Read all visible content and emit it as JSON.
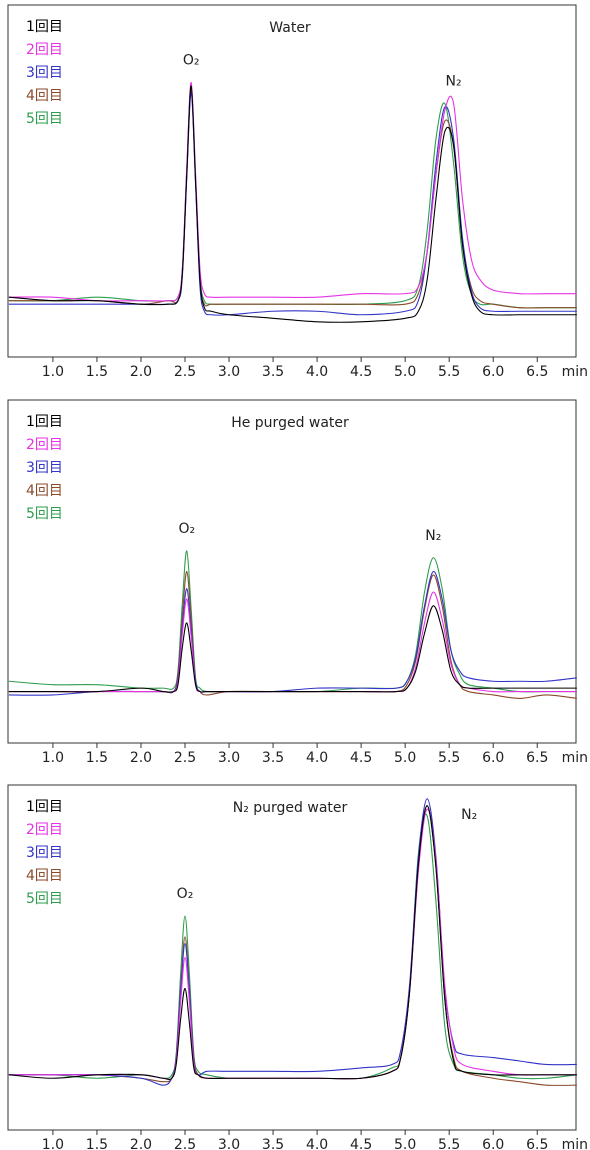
{
  "chart_data": [
    {
      "type": "line",
      "title": "Water",
      "xlabel": "min",
      "peak_labels": [
        "O₂",
        "N₂"
      ],
      "xlim": [
        0.49,
        6.94
      ],
      "ylim": [
        0,
        100
      ],
      "xticks": [
        {
          "value": 1,
          "label": "1.0"
        },
        {
          "value": 1.5,
          "label": "1.5"
        },
        {
          "value": 2,
          "label": "2.0"
        },
        {
          "value": 2.5,
          "label": "2.5"
        },
        {
          "value": 3,
          "label": "3.0"
        },
        {
          "value": 3.5,
          "label": "3.5"
        },
        {
          "value": 4,
          "label": "4.0"
        },
        {
          "value": 4.5,
          "label": "4.5"
        },
        {
          "value": 5,
          "label": "5.0"
        },
        {
          "value": 5.5,
          "label": "5.5"
        },
        {
          "value": 6,
          "label": "6.0"
        },
        {
          "value": 6.5,
          "label": "6.5"
        }
      ],
      "x": [
        0.5,
        1.0,
        1.5,
        2.0,
        2.3,
        2.42,
        2.47,
        2.52,
        2.57,
        2.62,
        2.67,
        2.72,
        2.8,
        3.0,
        3.5,
        4.0,
        4.5,
        5.0,
        5.15,
        5.25,
        5.35,
        5.45,
        5.55,
        5.65,
        5.75,
        5.85,
        6.0,
        6.3,
        6.6,
        6.95
      ],
      "series": [
        {
          "name": "1回目",
          "color": "#000000",
          "values": [
            17,
            16,
            16,
            15,
            15,
            16,
            24,
            52,
            77,
            50,
            22,
            14,
            13,
            12,
            11,
            10,
            10,
            11,
            13,
            22,
            45,
            64,
            60,
            32,
            18,
            13,
            12,
            12,
            12,
            12
          ]
        },
        {
          "name": "2回目",
          "color": "#e632e6",
          "values": [
            17,
            17,
            16,
            16,
            16,
            17,
            25,
            54,
            78,
            52,
            25,
            18,
            17,
            17,
            17,
            17,
            18,
            18,
            20,
            30,
            52,
            70,
            72,
            45,
            28,
            22,
            19,
            18,
            18,
            18
          ]
        },
        {
          "name": "3回目",
          "color": "#3333c8",
          "values": [
            15,
            15,
            15,
            15,
            15,
            16,
            23,
            51,
            75,
            49,
            20,
            13,
            12,
            12,
            13,
            13,
            12,
            13,
            16,
            30,
            55,
            71,
            62,
            34,
            19,
            14,
            13,
            13,
            13,
            13
          ]
        },
        {
          "name": "4回目",
          "color": "#8b4a2b",
          "values": [
            16,
            16,
            16,
            15,
            16,
            16,
            24,
            52,
            76,
            50,
            22,
            15,
            15,
            15,
            15,
            15,
            15,
            15,
            18,
            30,
            52,
            67,
            60,
            33,
            20,
            16,
            15,
            14,
            14,
            14
          ]
        },
        {
          "name": "5回目",
          "color": "#2e9e4e",
          "values": [
            16,
            16,
            17,
            16,
            16,
            17,
            25,
            53,
            77,
            51,
            23,
            16,
            15,
            15,
            15,
            15,
            15,
            16,
            20,
            36,
            62,
            72,
            55,
            29,
            18,
            15,
            15,
            14,
            14,
            14
          ]
        }
      ]
    },
    {
      "type": "line",
      "title": "He purged water",
      "xlabel": "min",
      "peak_labels": [
        "O₂",
        "N₂"
      ],
      "xlim": [
        0.49,
        6.94
      ],
      "ylim": [
        0,
        100
      ],
      "xticks": [
        {
          "value": 1,
          "label": "1.0"
        },
        {
          "value": 1.5,
          "label": "1.5"
        },
        {
          "value": 2,
          "label": "2.0"
        },
        {
          "value": 2.5,
          "label": "2.5"
        },
        {
          "value": 3,
          "label": "3.0"
        },
        {
          "value": 3.5,
          "label": "3.5"
        },
        {
          "value": 4,
          "label": "4.0"
        },
        {
          "value": 4.5,
          "label": "4.5"
        },
        {
          "value": 5,
          "label": "5.0"
        },
        {
          "value": 5.5,
          "label": "5.5"
        },
        {
          "value": 6,
          "label": "6.0"
        },
        {
          "value": 6.5,
          "label": "6.5"
        }
      ],
      "x": [
        0.5,
        1.0,
        1.5,
        2.0,
        2.25,
        2.37,
        2.42,
        2.47,
        2.52,
        2.57,
        2.62,
        2.67,
        2.75,
        3.0,
        3.5,
        4.0,
        4.5,
        4.9,
        5.02,
        5.12,
        5.22,
        5.32,
        5.42,
        5.52,
        5.62,
        5.72,
        6.0,
        6.3,
        6.6,
        6.95
      ],
      "series": [
        {
          "name": "1回目",
          "color": "#000000",
          "values": [
            15,
            15,
            15,
            16,
            15,
            15,
            17,
            28,
            35,
            27,
            17,
            15,
            15,
            15,
            15,
            15,
            15,
            15,
            16,
            21,
            32,
            40,
            33,
            21,
            17,
            16,
            16,
            16,
            16,
            16
          ]
        },
        {
          "name": "2回目",
          "color": "#e632e6",
          "values": [
            15,
            15,
            15,
            15,
            15,
            15,
            18,
            32,
            42,
            31,
            17,
            15,
            15,
            15,
            15,
            15,
            15,
            15,
            16,
            22,
            35,
            44,
            36,
            23,
            17,
            16,
            15,
            15,
            15,
            15
          ]
        },
        {
          "name": "3回目",
          "color": "#3333c8",
          "values": [
            14,
            14,
            15,
            15,
            15,
            15,
            19,
            34,
            45,
            33,
            18,
            15,
            15,
            15,
            15,
            16,
            16,
            16,
            18,
            25,
            40,
            50,
            42,
            27,
            21,
            19,
            18,
            18,
            18,
            19
          ]
        },
        {
          "name": "4回目",
          "color": "#8b4a2b",
          "values": [
            15,
            15,
            15,
            15,
            15,
            15,
            20,
            37,
            50,
            36,
            18,
            15,
            14,
            15,
            15,
            15,
            15,
            15,
            17,
            24,
            39,
            49,
            40,
            24,
            17,
            15,
            14,
            13,
            14,
            13
          ]
        },
        {
          "name": "5回目",
          "color": "#2e9e4e",
          "values": [
            18,
            17,
            17,
            16,
            16,
            16,
            21,
            41,
            56,
            39,
            19,
            16,
            15,
            15,
            15,
            15,
            16,
            16,
            18,
            26,
            44,
            54,
            45,
            27,
            20,
            17,
            16,
            15,
            15,
            15
          ]
        }
      ]
    },
    {
      "type": "line",
      "title": "N₂ purged water",
      "xlabel": "min",
      "peak_labels": [
        "O₂",
        "N₂"
      ],
      "xlim": [
        0.49,
        6.94
      ],
      "ylim": [
        0,
        100
      ],
      "xticks": [
        {
          "value": 1,
          "label": "1.0"
        },
        {
          "value": 1.5,
          "label": "1.5"
        },
        {
          "value": 2,
          "label": "2.0"
        },
        {
          "value": 2.5,
          "label": "2.5"
        },
        {
          "value": 3,
          "label": "3.0"
        },
        {
          "value": 3.5,
          "label": "3.5"
        },
        {
          "value": 4,
          "label": "4.0"
        },
        {
          "value": 4.5,
          "label": "4.5"
        },
        {
          "value": 5,
          "label": "5.0"
        },
        {
          "value": 5.5,
          "label": "5.5"
        },
        {
          "value": 6,
          "label": "6.0"
        },
        {
          "value": 6.5,
          "label": "6.5"
        }
      ],
      "x": [
        0.5,
        1.0,
        1.5,
        2.0,
        2.25,
        2.35,
        2.4,
        2.45,
        2.5,
        2.55,
        2.6,
        2.65,
        2.75,
        3.0,
        3.5,
        4.0,
        4.5,
        4.85,
        4.95,
        5.05,
        5.15,
        5.25,
        5.35,
        5.45,
        5.55,
        5.65,
        6.0,
        6.3,
        6.6,
        6.95
      ],
      "series": [
        {
          "name": "1回目",
          "color": "#000000",
          "values": [
            16,
            15,
            16,
            16,
            15,
            15,
            19,
            32,
            41,
            31,
            18,
            16,
            15,
            15,
            15,
            15,
            15,
            17,
            21,
            40,
            77,
            94,
            76,
            38,
            20,
            17,
            16,
            16,
            16,
            16
          ]
        },
        {
          "name": "2回目",
          "color": "#e632e6",
          "values": [
            16,
            16,
            16,
            16,
            15,
            15,
            20,
            37,
            50,
            37,
            19,
            16,
            15,
            15,
            15,
            15,
            15,
            17,
            21,
            40,
            75,
            93,
            78,
            42,
            24,
            19,
            17,
            16,
            16,
            16
          ]
        },
        {
          "name": "3回目",
          "color": "#3333c8",
          "values": [
            16,
            16,
            16,
            15,
            13,
            15,
            21,
            40,
            54,
            40,
            20,
            16,
            17,
            17,
            17,
            17,
            18,
            19,
            23,
            42,
            79,
            96,
            79,
            41,
            25,
            22,
            21,
            20,
            19,
            19
          ]
        },
        {
          "name": "4回目",
          "color": "#8b4a2b",
          "values": [
            16,
            16,
            16,
            15,
            14,
            15,
            21,
            41,
            56,
            41,
            21,
            16,
            15,
            15,
            15,
            15,
            15,
            17,
            21,
            40,
            76,
            94,
            76,
            38,
            21,
            17,
            15,
            14,
            13,
            13
          ]
        },
        {
          "name": "5回目",
          "color": "#2e9e4e",
          "values": [
            16,
            16,
            15,
            16,
            15,
            16,
            22,
            45,
            62,
            45,
            22,
            17,
            16,
            15,
            15,
            15,
            15,
            18,
            21,
            40,
            80,
            91,
            66,
            30,
            19,
            17,
            16,
            15,
            15,
            16
          ]
        }
      ]
    }
  ]
}
